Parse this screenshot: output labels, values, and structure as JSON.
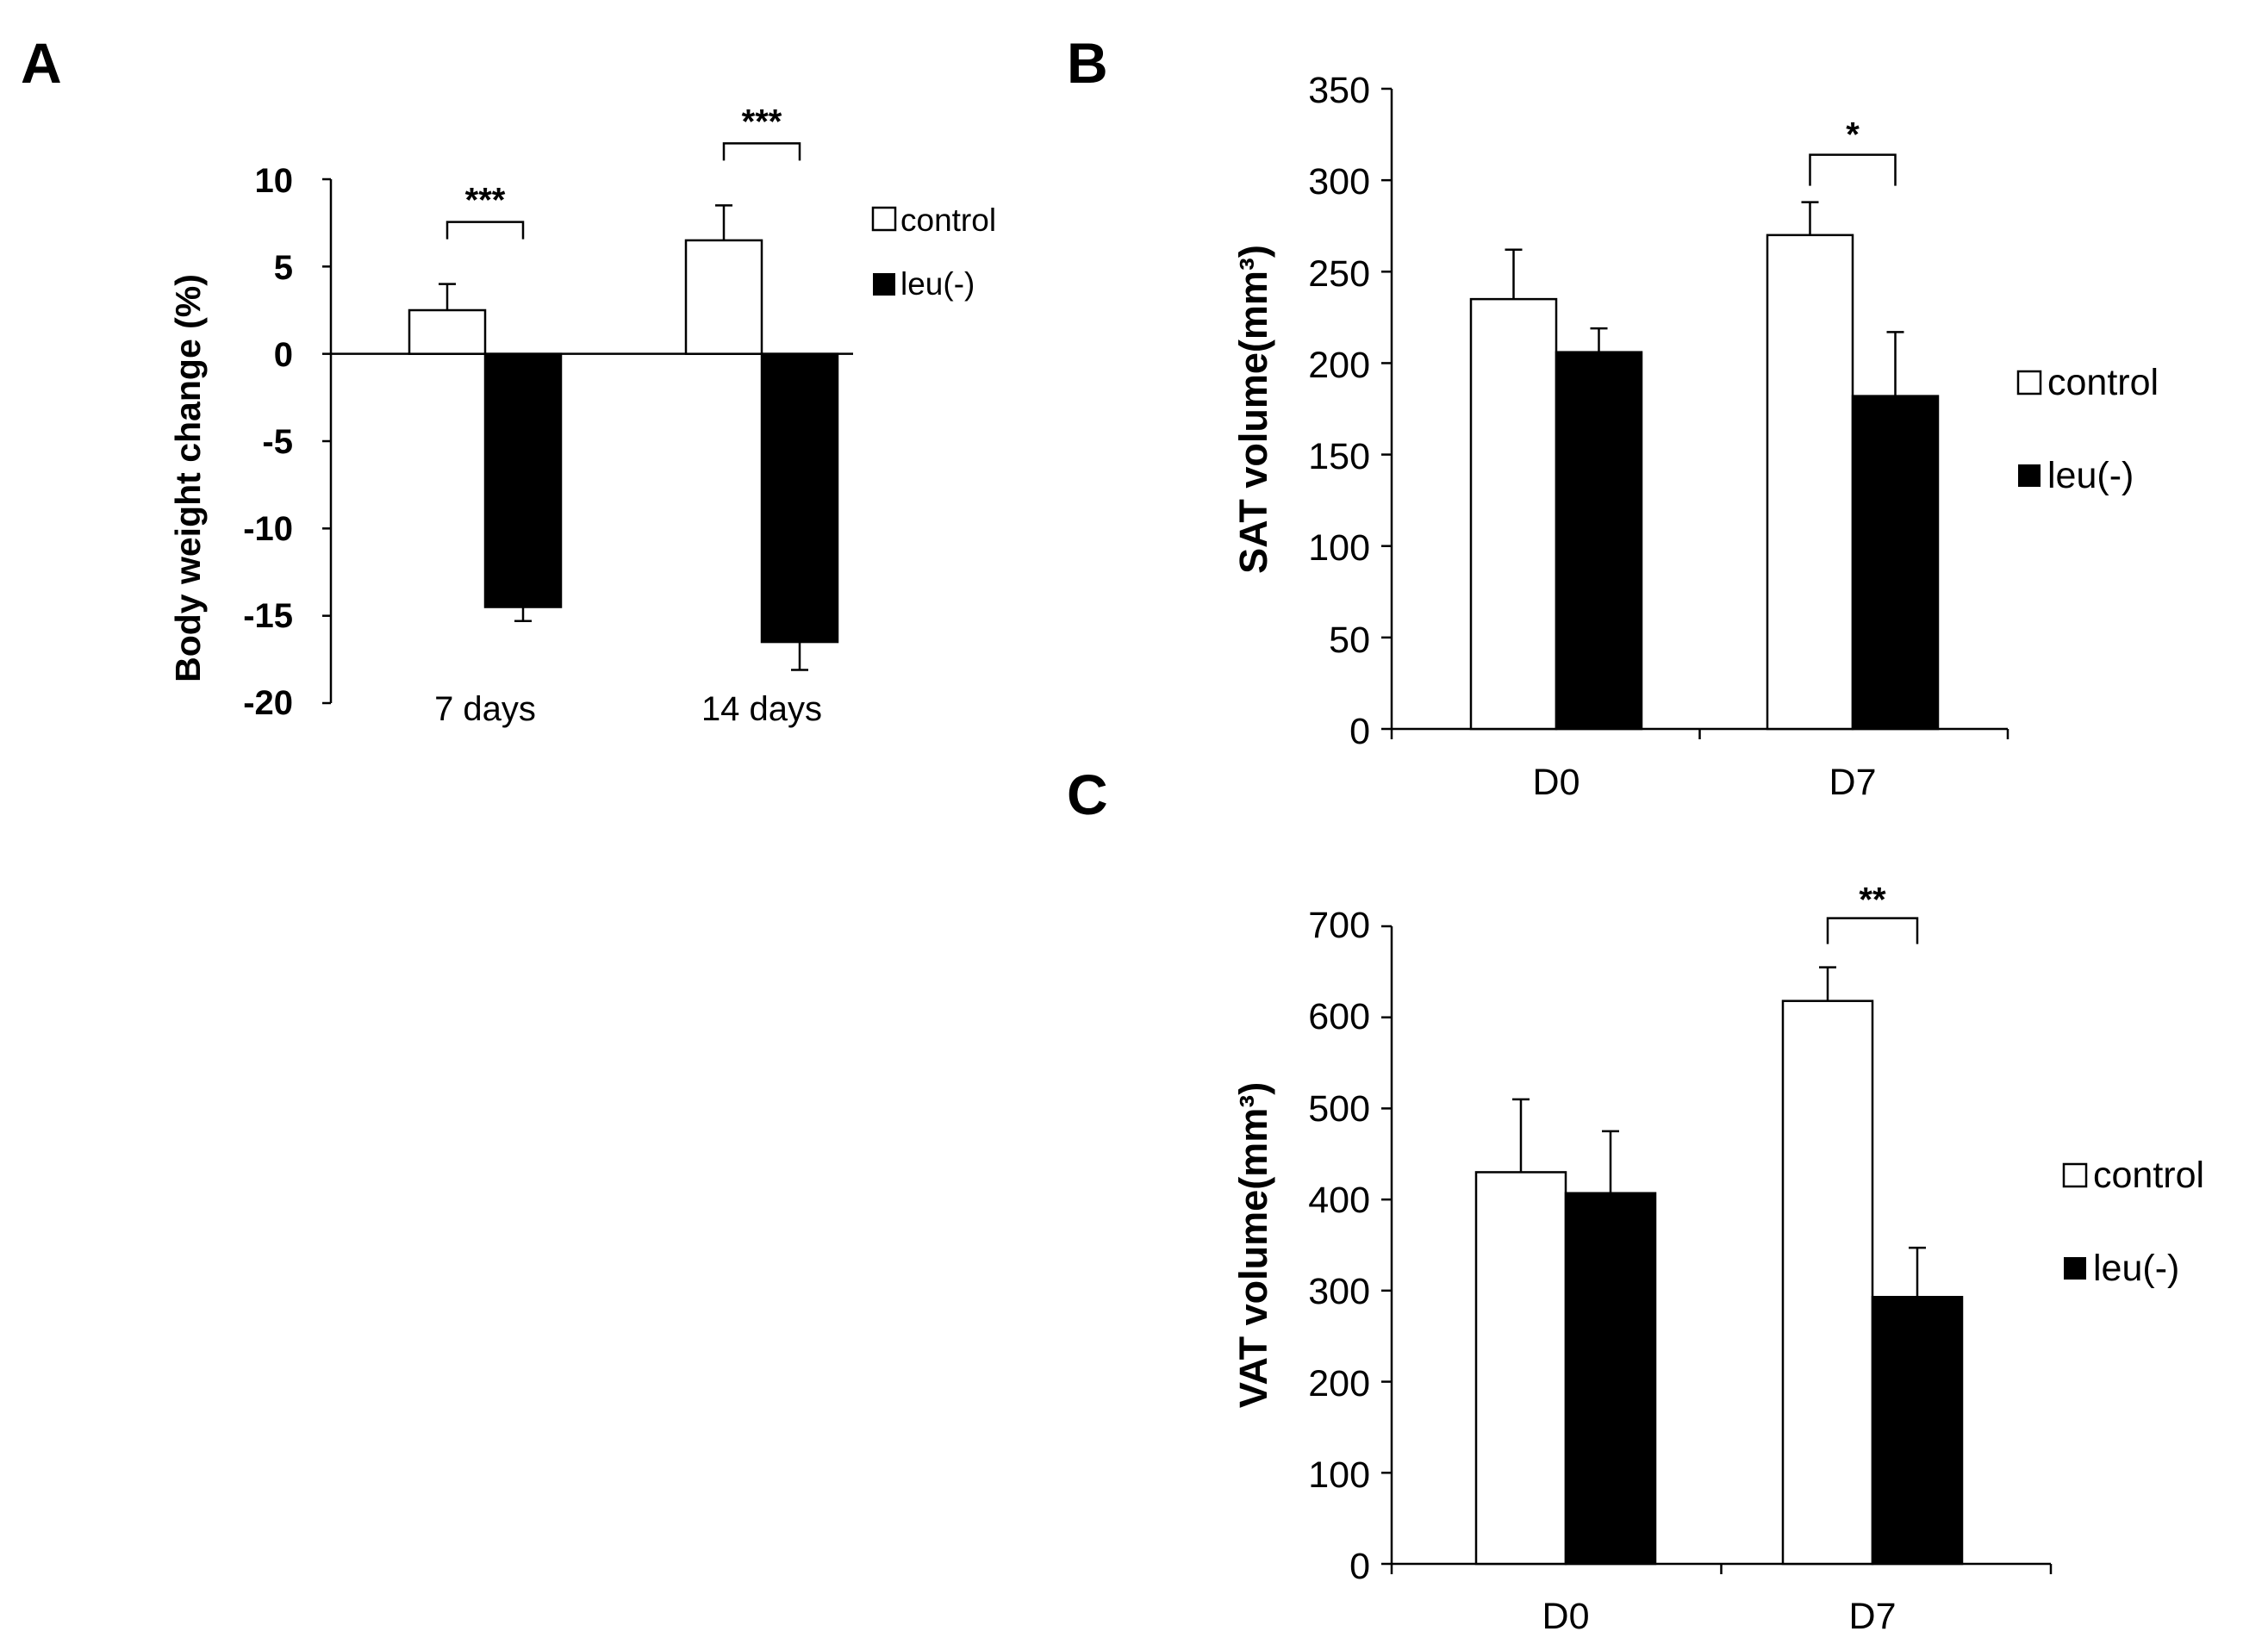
{
  "colors": {
    "control": "#ffffff",
    "leu": "#000000",
    "axis": "#000000"
  },
  "chart_data": [
    {
      "type": "bar",
      "panel": "A",
      "categories": [
        "7 days",
        "14 days"
      ],
      "series": [
        {
          "name": "control",
          "values": [
            2.5,
            6.5
          ],
          "errors": [
            1.5,
            2.0
          ]
        },
        {
          "name": "leu(-)",
          "values": [
            -14.5,
            -16.5
          ],
          "errors": [
            0.8,
            1.6
          ]
        }
      ],
      "ylabel": "Body weight change (%)",
      "ylim": [
        -20,
        10
      ],
      "yticks": [
        10,
        5,
        0,
        -5,
        -10,
        -15,
        -20
      ],
      "ytick_labels": [
        "10",
        "5",
        "0",
        "-5",
        "-10",
        "-15",
        "-20"
      ],
      "significance": [
        "***",
        "***"
      ],
      "legend": [
        "control",
        "leu(-)"
      ],
      "legend_position": "top-right"
    },
    {
      "type": "bar",
      "panel": "B",
      "categories": [
        "D0",
        "D7"
      ],
      "series": [
        {
          "name": "control",
          "values": [
            235,
            270
          ],
          "errors": [
            27,
            18
          ]
        },
        {
          "name": "leu(-)",
          "values": [
            206,
            182
          ],
          "errors": [
            13,
            35
          ]
        }
      ],
      "ylabel": "SAT volume(mm³)",
      "ylim": [
        0,
        350
      ],
      "yticks": [
        350,
        300,
        250,
        200,
        150,
        100,
        50,
        0
      ],
      "ytick_labels": [
        "350",
        "300",
        "250",
        "200",
        "150",
        "100",
        "50",
        "0"
      ],
      "significance": [
        "",
        "*"
      ],
      "legend": [
        "control",
        "leu(-)"
      ],
      "legend_position": "right"
    },
    {
      "type": "bar",
      "panel": "C",
      "categories": [
        "D0",
        "D7"
      ],
      "series": [
        {
          "name": "control",
          "values": [
            430,
            618
          ],
          "errors": [
            80,
            37
          ]
        },
        {
          "name": "leu(-)",
          "values": [
            407,
            293
          ],
          "errors": [
            68,
            54
          ]
        }
      ],
      "ylabel": "VAT volume(mm³)",
      "ylim": [
        0,
        700
      ],
      "yticks": [
        700,
        600,
        500,
        400,
        300,
        200,
        100,
        0
      ],
      "ytick_labels": [
        "700",
        "600",
        "500",
        "400",
        "300",
        "200",
        "100",
        "0"
      ],
      "significance": [
        "",
        "**"
      ],
      "legend": [
        "control",
        "leu(-)"
      ],
      "legend_position": "right"
    }
  ]
}
